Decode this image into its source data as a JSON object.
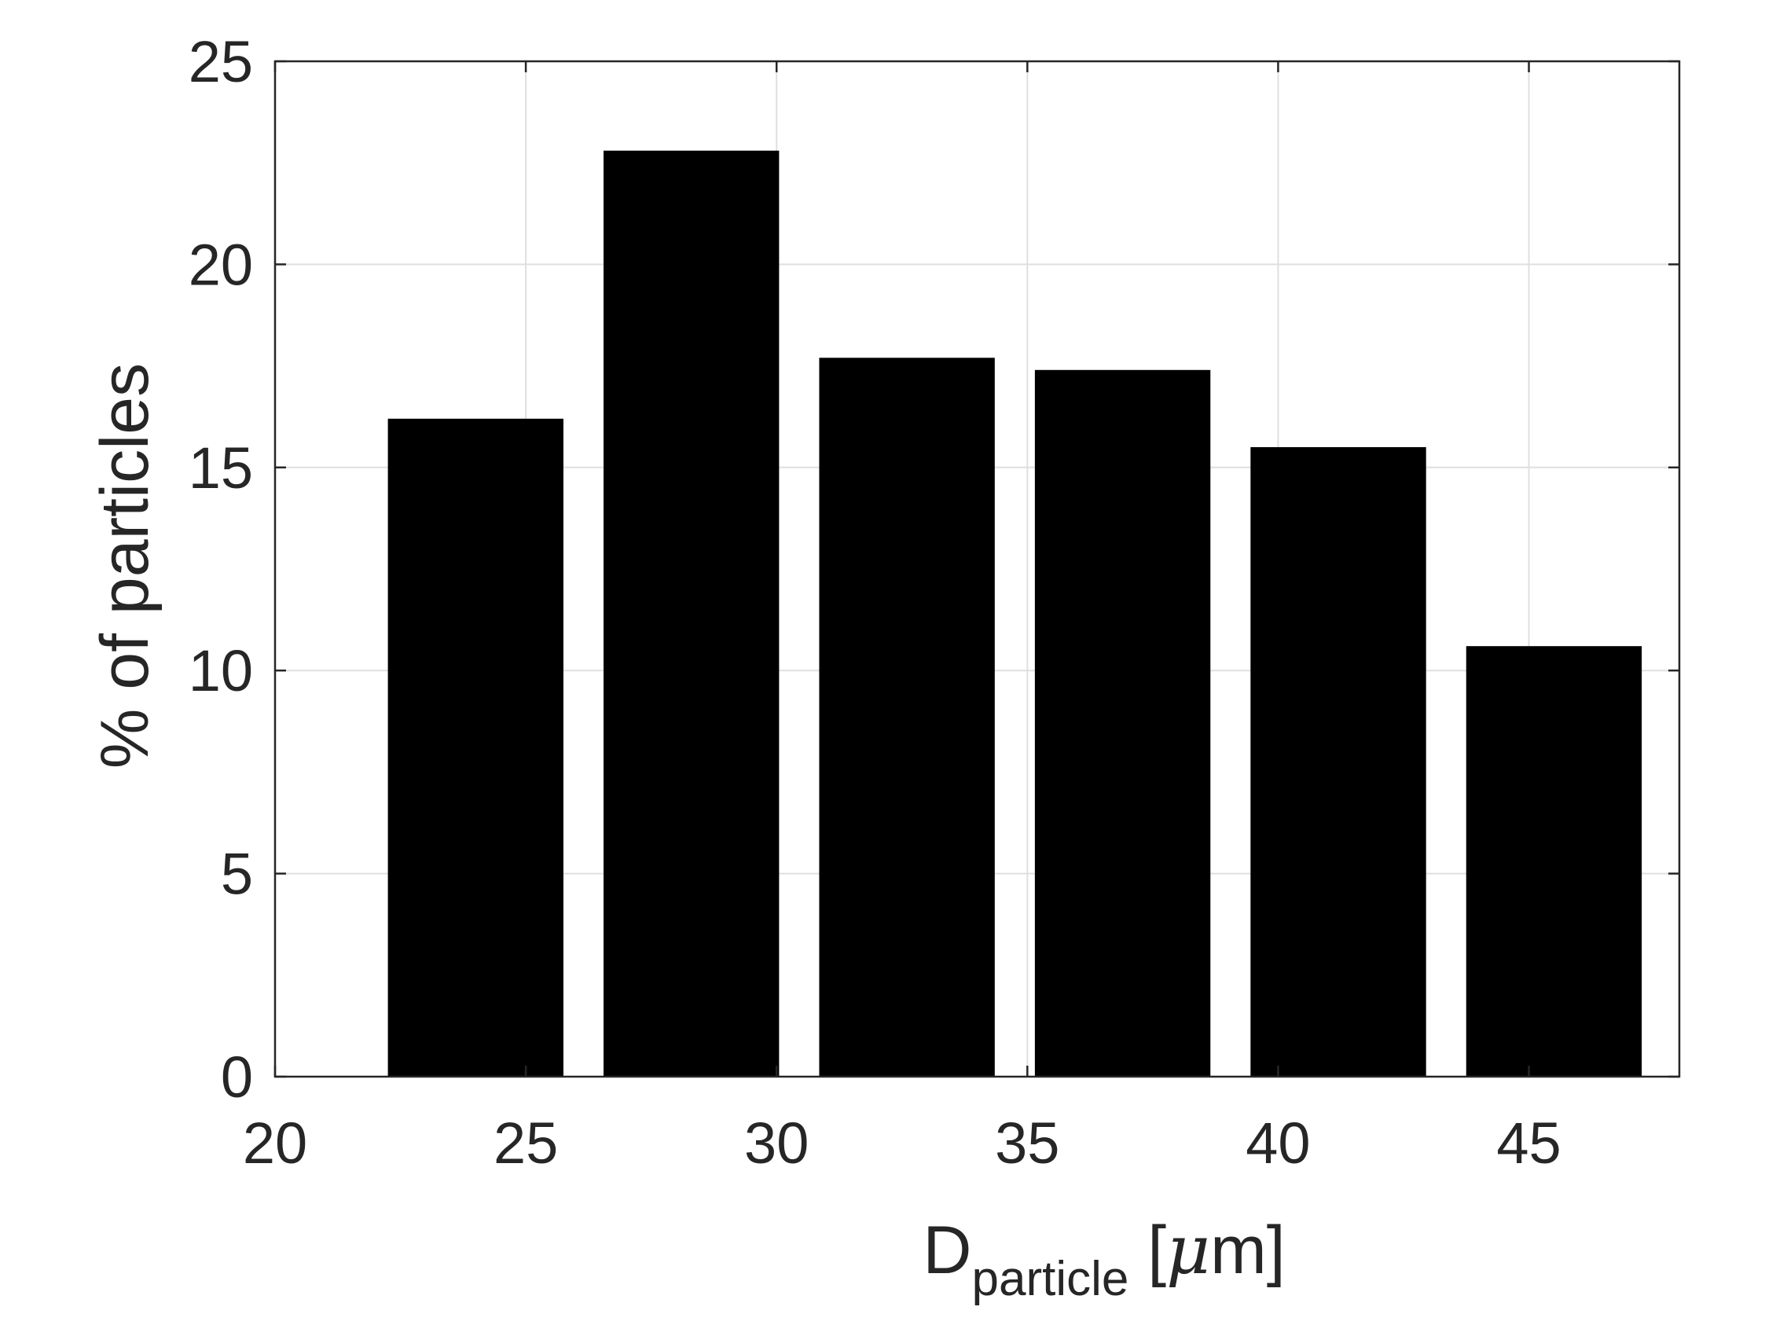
{
  "chart_data": {
    "type": "bar",
    "x": [
      24,
      28.3,
      32.6,
      36.9,
      41.2,
      45.5
    ],
    "values": [
      16.2,
      22.8,
      17.7,
      17.4,
      15.5,
      10.6
    ],
    "bar_width": 3.5,
    "xlim": [
      20,
      48
    ],
    "ylim": [
      0,
      25
    ],
    "xticks": [
      20,
      25,
      30,
      35,
      40,
      45
    ],
    "yticks": [
      0,
      5,
      10,
      15,
      20,
      25
    ],
    "xlabel": {
      "main": "D",
      "subscript": "particle",
      "unit_open": " [",
      "unit_symbol": "μ",
      "unit_rest": "m]"
    },
    "ylabel": "% of particles",
    "grid": true,
    "bar_color": "#000000",
    "grid_color": "#dfdfdf",
    "axis_color": "#262626"
  }
}
